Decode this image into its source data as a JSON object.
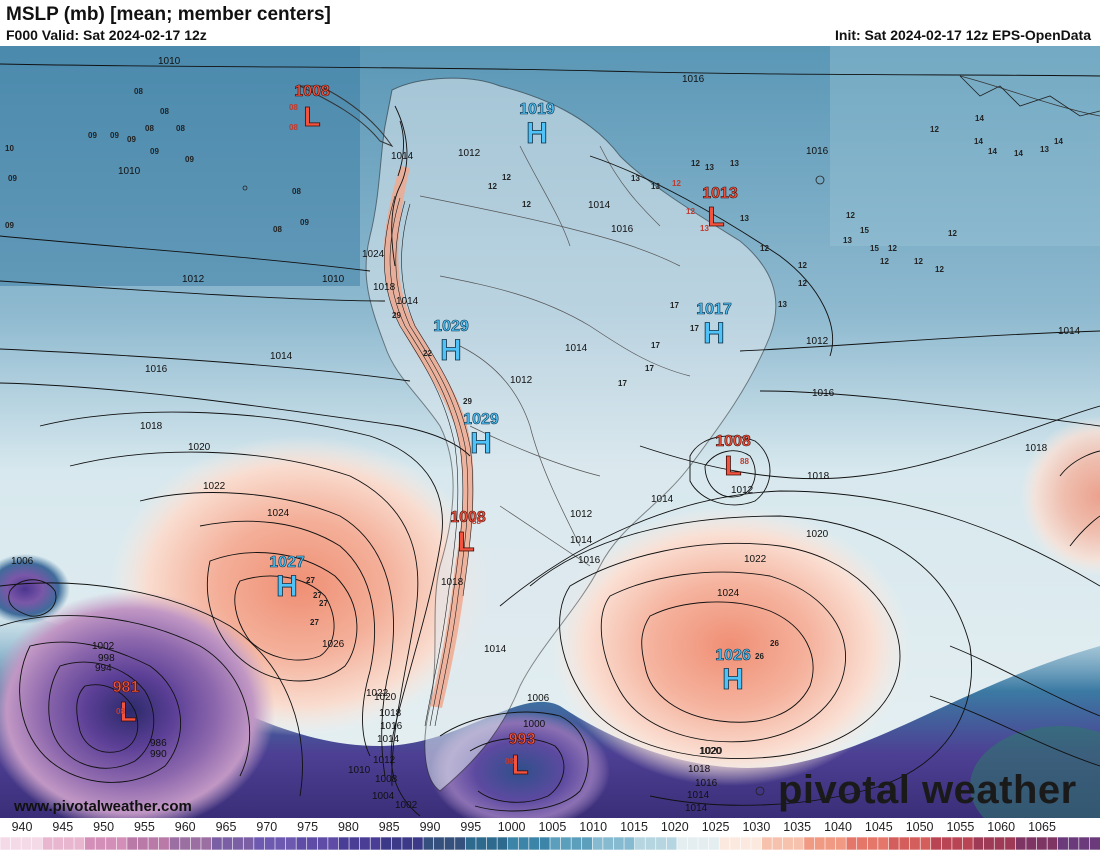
{
  "header": {
    "title": "MSLP (mb) [mean; member centers]",
    "valid": "F000 Valid: Sat 2024-02-17 12z",
    "init": "Init: Sat 2024-02-17 12z EPS-OpenData"
  },
  "footer": {
    "url": "www.pivotalweather.com",
    "logo": "pivotal weather"
  },
  "colorbar": {
    "unit": "mb",
    "ticks": [
      "940",
      "945",
      "950",
      "955",
      "960",
      "965",
      "970",
      "975",
      "980",
      "985",
      "990",
      "995",
      "1000",
      "1005",
      "1010",
      "1015",
      "1020",
      "1025",
      "1030",
      "1035",
      "1040",
      "1045",
      "1050",
      "1055",
      "1060",
      "1065"
    ],
    "colors": [
      "#f4d9e6",
      "#e8b6cf",
      "#d48fb9",
      "#b97aa8",
      "#9b6fa2",
      "#7b5fa5",
      "#6d59b0",
      "#5f4ca6",
      "#4a3d96",
      "#3c3a88",
      "#36507e",
      "#2e6a8e",
      "#3d85a8",
      "#5c9fbd",
      "#86bad0",
      "#b5d5e0",
      "#e4eef0",
      "#fbe9df",
      "#f7c2ad",
      "#f09a83",
      "#e4776a",
      "#d45e5b",
      "#b94453",
      "#9e3a55",
      "#7f3564",
      "#6a3a7a"
    ]
  },
  "systems": {
    "highs": [
      {
        "label": "H",
        "value": "1019"
      },
      {
        "label": "H",
        "value": "1017"
      },
      {
        "label": "H",
        "value": "1029"
      },
      {
        "label": "H",
        "value": "1029"
      },
      {
        "label": "H",
        "value": "1027"
      },
      {
        "label": "H",
        "value": "1026"
      }
    ],
    "lows": [
      {
        "label": "L",
        "value": "1008"
      },
      {
        "label": "L",
        "value": "1013"
      },
      {
        "label": "L",
        "value": "1008"
      },
      {
        "label": "L",
        "value": "1008"
      },
      {
        "label": "L",
        "value": "981"
      },
      {
        "label": "L",
        "value": "993"
      }
    ]
  },
  "contour_labels": [
    "1010",
    "1012",
    "1014",
    "1016",
    "1018",
    "1020",
    "1022",
    "1024",
    "1026",
    "1006",
    "1002",
    "998",
    "994",
    "990",
    "986",
    "1010",
    "1008",
    "1004",
    "1002",
    "1000",
    "1012",
    "1014",
    "1016",
    "1018",
    "1020",
    "1022",
    "1024",
    "1016",
    "1014",
    "1014",
    "1014",
    "1018",
    "1016",
    "1014",
    "1012",
    "1012",
    "1012",
    "1014",
    "1016",
    "1018",
    "1020",
    "1014",
    "1012",
    "1012",
    "1014",
    "1016",
    "1016",
    "1018",
    "1022",
    "1020",
    "1018",
    "1016",
    "1014",
    "1006",
    "1000"
  ],
  "member_labels": [
    "08",
    "09",
    "10",
    "12",
    "13",
    "14",
    "15",
    "17",
    "22",
    "26",
    "27",
    "29",
    "88"
  ]
}
